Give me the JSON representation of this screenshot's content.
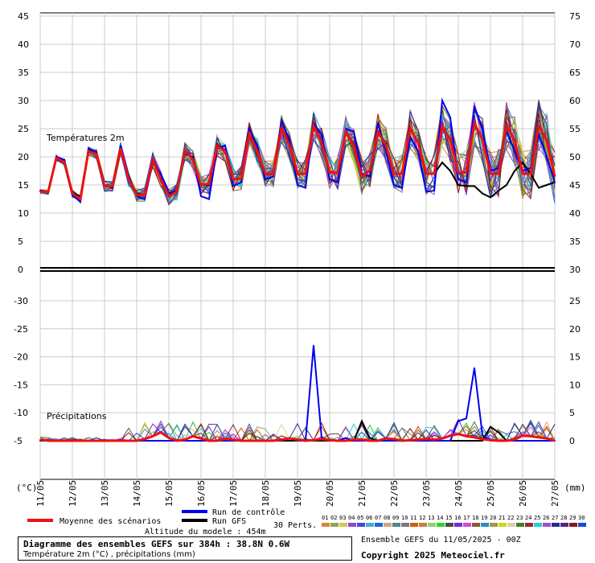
{
  "chart_data": {
    "type": "line",
    "x": [
      "11/05",
      "12/05",
      "13/05",
      "14/05",
      "15/05",
      "16/05",
      "17/05",
      "18/05",
      "19/05",
      "20/05",
      "21/05",
      "22/05",
      "23/05",
      "24/05",
      "25/05",
      "26/05",
      "27/05"
    ],
    "temperature_panel": {
      "label": "Températures 2m",
      "left_axis_ticks": [
        "0",
        "5",
        "10",
        "15",
        "20",
        "25",
        "30",
        "35",
        "40",
        "45"
      ],
      "right_axis_ticks": [
        "30",
        "35",
        "40",
        "45",
        "50",
        "55",
        "60",
        "65",
        "70",
        "75"
      ],
      "ylim": [
        0,
        45
      ],
      "mean_series": {
        "name": "Moyenne des scénarios",
        "values": [
          13.8,
          13.8,
          19.8,
          19.0,
          13.5,
          12.5,
          21.0,
          20.5,
          14.8,
          14.8,
          21.5,
          16.0,
          13.2,
          13.2,
          19.5,
          16.0,
          13.0,
          13.8,
          21.0,
          19.5,
          15.0,
          15.2,
          22.0,
          21.0,
          16.0,
          16.2,
          24.0,
          21.0,
          17.0,
          17.0,
          25.0,
          22.0,
          17.0,
          17.0,
          25.5,
          22.5,
          17.2,
          17.2,
          24.5,
          22.0,
          16.5,
          17.5,
          24.5,
          22.0,
          17.0,
          17.0,
          25.0,
          22.5,
          17.0,
          17.0,
          25.5,
          23.0,
          17.2,
          17.2,
          26.0,
          23.0,
          17.0,
          17.0,
          25.5,
          23.0,
          17.0,
          17.0,
          25.5,
          23.0,
          16.5
        ]
      },
      "control_series": {
        "name": "Run de contrôle",
        "values": [
          14.0,
          13.8,
          20.0,
          19.5,
          13.2,
          12.0,
          21.5,
          20.8,
          15.0,
          14.5,
          22.0,
          16.5,
          13.0,
          12.5,
          19.0,
          17.0,
          13.5,
          14.0,
          20.5,
          20.0,
          13.0,
          12.5,
          21.5,
          22.0,
          14.8,
          15.5,
          25.0,
          22.0,
          16.0,
          16.5,
          26.5,
          23.0,
          15.0,
          14.5,
          26.0,
          24.0,
          16.0,
          15.5,
          25.0,
          24.5,
          17.0,
          16.5,
          26.0,
          21.0,
          15.0,
          14.5,
          23.5,
          21.0,
          13.8,
          14.0,
          30.0,
          27.0,
          16.0,
          15.5,
          29.0,
          25.0,
          17.5,
          18.0,
          24.5,
          21.0,
          17.5,
          18.0,
          24.0,
          20.0,
          15.5
        ]
      },
      "gfs_series": {
        "name": "Run GFS",
        "values": [
          14.0,
          13.8,
          19.8,
          19.5,
          13.6,
          13.0,
          21.2,
          20.6,
          15.0,
          14.8,
          21.6,
          16.2,
          13.4,
          13.2,
          19.4,
          16.8,
          13.4,
          14.0,
          20.8,
          19.8,
          15.0,
          15.0,
          22.2,
          21.2,
          16.0,
          16.2,
          24.2,
          21.2,
          17.0,
          17.0,
          25.2,
          22.2,
          17.0,
          17.0,
          25.6,
          22.6,
          17.2,
          17.2,
          24.6,
          22.2,
          16.6,
          17.5,
          24.6,
          22.2,
          17.0,
          17.0,
          25.2,
          22.5,
          17.0,
          17.0,
          19.0,
          17.5,
          15.0,
          14.8,
          14.8,
          13.5,
          12.8,
          14.0,
          15.0,
          17.5,
          19.0,
          17.0,
          14.5,
          15.0,
          15.5
        ]
      }
    },
    "precipitation_panel": {
      "label": "Précipitations",
      "left_axis_ticks": [
        "-30",
        "-25",
        "-20",
        "-15",
        "-10",
        "-5"
      ],
      "right_axis_ticks": [
        "0",
        "5",
        "10",
        "15",
        "20",
        "25"
      ],
      "ylim": [
        0,
        30
      ],
      "mean_series": {
        "name": "Moyenne des scénarios",
        "values": [
          0.2,
          0,
          0,
          0,
          0,
          0,
          0,
          0,
          0,
          0,
          0,
          0,
          0,
          0.3,
          0.8,
          1.5,
          0.5,
          0,
          0.2,
          0.8,
          0.4,
          0,
          0,
          0.3,
          0.2,
          0,
          0,
          0,
          0,
          0,
          0.2,
          0.4,
          0.2,
          0,
          0.1,
          0.3,
          0.1,
          0,
          0,
          0.2,
          0.2,
          0,
          0,
          0.4,
          0.3,
          0,
          0.1,
          0.2,
          0.3,
          0.2,
          0.4,
          0.9,
          1.2,
          0.8,
          0.6,
          0.3,
          0.1,
          0,
          0,
          0.2,
          0.9,
          0.8,
          0.6,
          0.4,
          0
        ]
      },
      "control_series": {
        "name": "Run de contrôle",
        "values": [
          0,
          0,
          0,
          0,
          0,
          0,
          0,
          0,
          0,
          0,
          0,
          0,
          0,
          0,
          0,
          0,
          0,
          0,
          0,
          0,
          0,
          0,
          0,
          0,
          0,
          0,
          0,
          0,
          0,
          0,
          0,
          0.5,
          0,
          0,
          17.0,
          0.5,
          0,
          0,
          0.5,
          0,
          0,
          0,
          0,
          0,
          0,
          0,
          0,
          0,
          0,
          0,
          0,
          0,
          3.5,
          4.0,
          13.0,
          1.0,
          0,
          0,
          0,
          0,
          0,
          0,
          0,
          0,
          0
        ]
      },
      "gfs_series": {
        "name": "Run GFS",
        "values": [
          0,
          0,
          0,
          0,
          0,
          0,
          0,
          0,
          0,
          0,
          0,
          0,
          0,
          0,
          0,
          0,
          0,
          0,
          0,
          0,
          0,
          0,
          0,
          0,
          0,
          0,
          0,
          0,
          0,
          0,
          0,
          0,
          0,
          0,
          0,
          0,
          0,
          0,
          0,
          0,
          3.5,
          0.5,
          0,
          0,
          0,
          0,
          0,
          0,
          0,
          0,
          0,
          0,
          0,
          0,
          0,
          0,
          2.5,
          1.5,
          0,
          0,
          0,
          0,
          0,
          0,
          0
        ]
      }
    },
    "left_unit": "(°C)",
    "right_unit": "(mm)",
    "perturbations_label": "30 Perts.",
    "perturbation_numbers": [
      "01",
      "02",
      "03",
      "04",
      "05",
      "06",
      "07",
      "08",
      "09",
      "10",
      "11",
      "12",
      "13",
      "14",
      "15",
      "16",
      "17",
      "18",
      "19",
      "20",
      "21",
      "22",
      "23",
      "24",
      "25",
      "26",
      "27",
      "28",
      "29",
      "30"
    ],
    "perturbation_colors": [
      "#d48a3a",
      "#8fa84a",
      "#d4c84a",
      "#8a4ad4",
      "#4a4ad4",
      "#4aa8d4",
      "#1a6ad4",
      "#d4a87a",
      "#4a8a8a",
      "#7a7a7a",
      "#d45a1a",
      "#d47a3a",
      "#8ad47a",
      "#2ad42a",
      "#4a4a4a",
      "#7a2ad4",
      "#d44ad4",
      "#8a5a2a",
      "#2a8ad4",
      "#9a9a4a",
      "#d4d41a",
      "#d4d4a8",
      "#4a7a2a",
      "#9a2a2a",
      "#1ad4d4",
      "#a84ad4",
      "#2a2a8a",
      "#4a2a8a",
      "#8a1a1a",
      "#1a4ad4"
    ]
  },
  "legend": {
    "mean_label": "Moyenne des scénarios",
    "mean_color": "#ee1111",
    "control_label": "Run de contrôle",
    "control_color": "#0000ee",
    "gfs_label": "Run GFS",
    "gfs_color": "#000000",
    "altitude": "Altitude du modele : 454m"
  },
  "footer": {
    "title": "Diagramme des ensembles GEFS sur 384h : 38.8N 0.6W",
    "subtitle": "Température 2m (°C) , précipitations (mm)",
    "ensemble_date": "Ensemble GEFS du 11/05/2025 - 00Z",
    "copyright": "Copyright 2025 Meteociel.fr"
  }
}
